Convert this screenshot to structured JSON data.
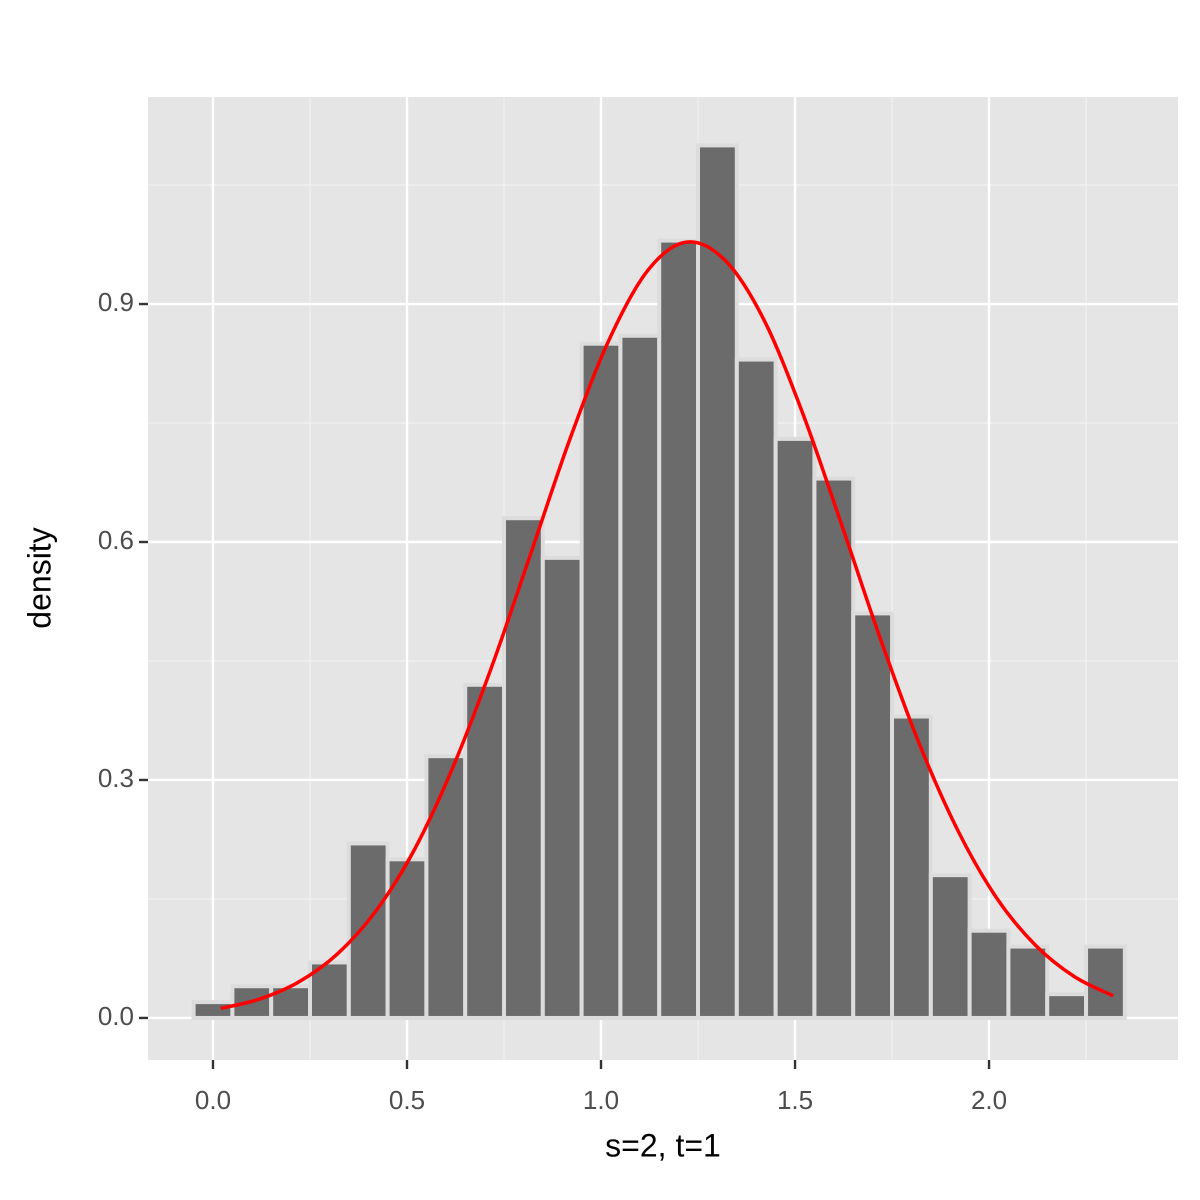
{
  "chart_data": {
    "type": "histogram",
    "x_label": "s=2, t=1",
    "y_label": "density",
    "bins": [
      -0.05,
      0.05,
      0.15,
      0.25,
      0.35,
      0.45,
      0.55,
      0.65,
      0.75,
      0.85,
      0.95,
      1.05,
      1.15,
      1.25,
      1.35,
      1.45,
      1.55,
      1.65,
      1.75,
      1.85,
      1.95,
      2.05,
      2.15,
      2.25,
      2.35
    ],
    "values": [
      0.02,
      0.04,
      0.04,
      0.07,
      0.22,
      0.2,
      0.33,
      0.42,
      0.63,
      0.58,
      0.85,
      0.86,
      0.98,
      1.1,
      0.83,
      0.73,
      0.68,
      0.51,
      0.38,
      0.18,
      0.11,
      0.09,
      0.03,
      0.09
    ],
    "color": "#6b6b6b",
    "edge_color": "#dcdcdc",
    "overlay": {
      "type": "line",
      "color": "#ff0000",
      "x": [
        0.02,
        0.12,
        0.22,
        0.32,
        0.42,
        0.52,
        0.62,
        0.72,
        0.82,
        0.92,
        1.02,
        1.12,
        1.22,
        1.32,
        1.42,
        1.52,
        1.62,
        1.72,
        1.82,
        1.92,
        2.02,
        2.12,
        2.22,
        2.32
      ],
      "values": [
        0.012,
        0.0238,
        0.0451,
        0.0804,
        0.135,
        0.213,
        0.318,
        0.445,
        0.587,
        0.73,
        0.854,
        0.942,
        0.978,
        0.955,
        0.88,
        0.762,
        0.622,
        0.478,
        0.346,
        0.236,
        0.151,
        0.0915,
        0.0521,
        0.0279
      ]
    },
    "xlim": [
      -0.1675,
      2.487
    ],
    "ylim": [
      -0.053,
      1.161
    ],
    "xticks": [
      {
        "value": 0,
        "label": "0.0"
      },
      0.5,
      {
        "value": 1,
        "label": "1.0"
      },
      1.5,
      {
        "value": 2,
        "label": "2.0"
      }
    ],
    "yticks": [
      {
        "value": 0,
        "label": "0.0"
      },
      0.3,
      0.6,
      0.9
    ],
    "grid": true
  }
}
